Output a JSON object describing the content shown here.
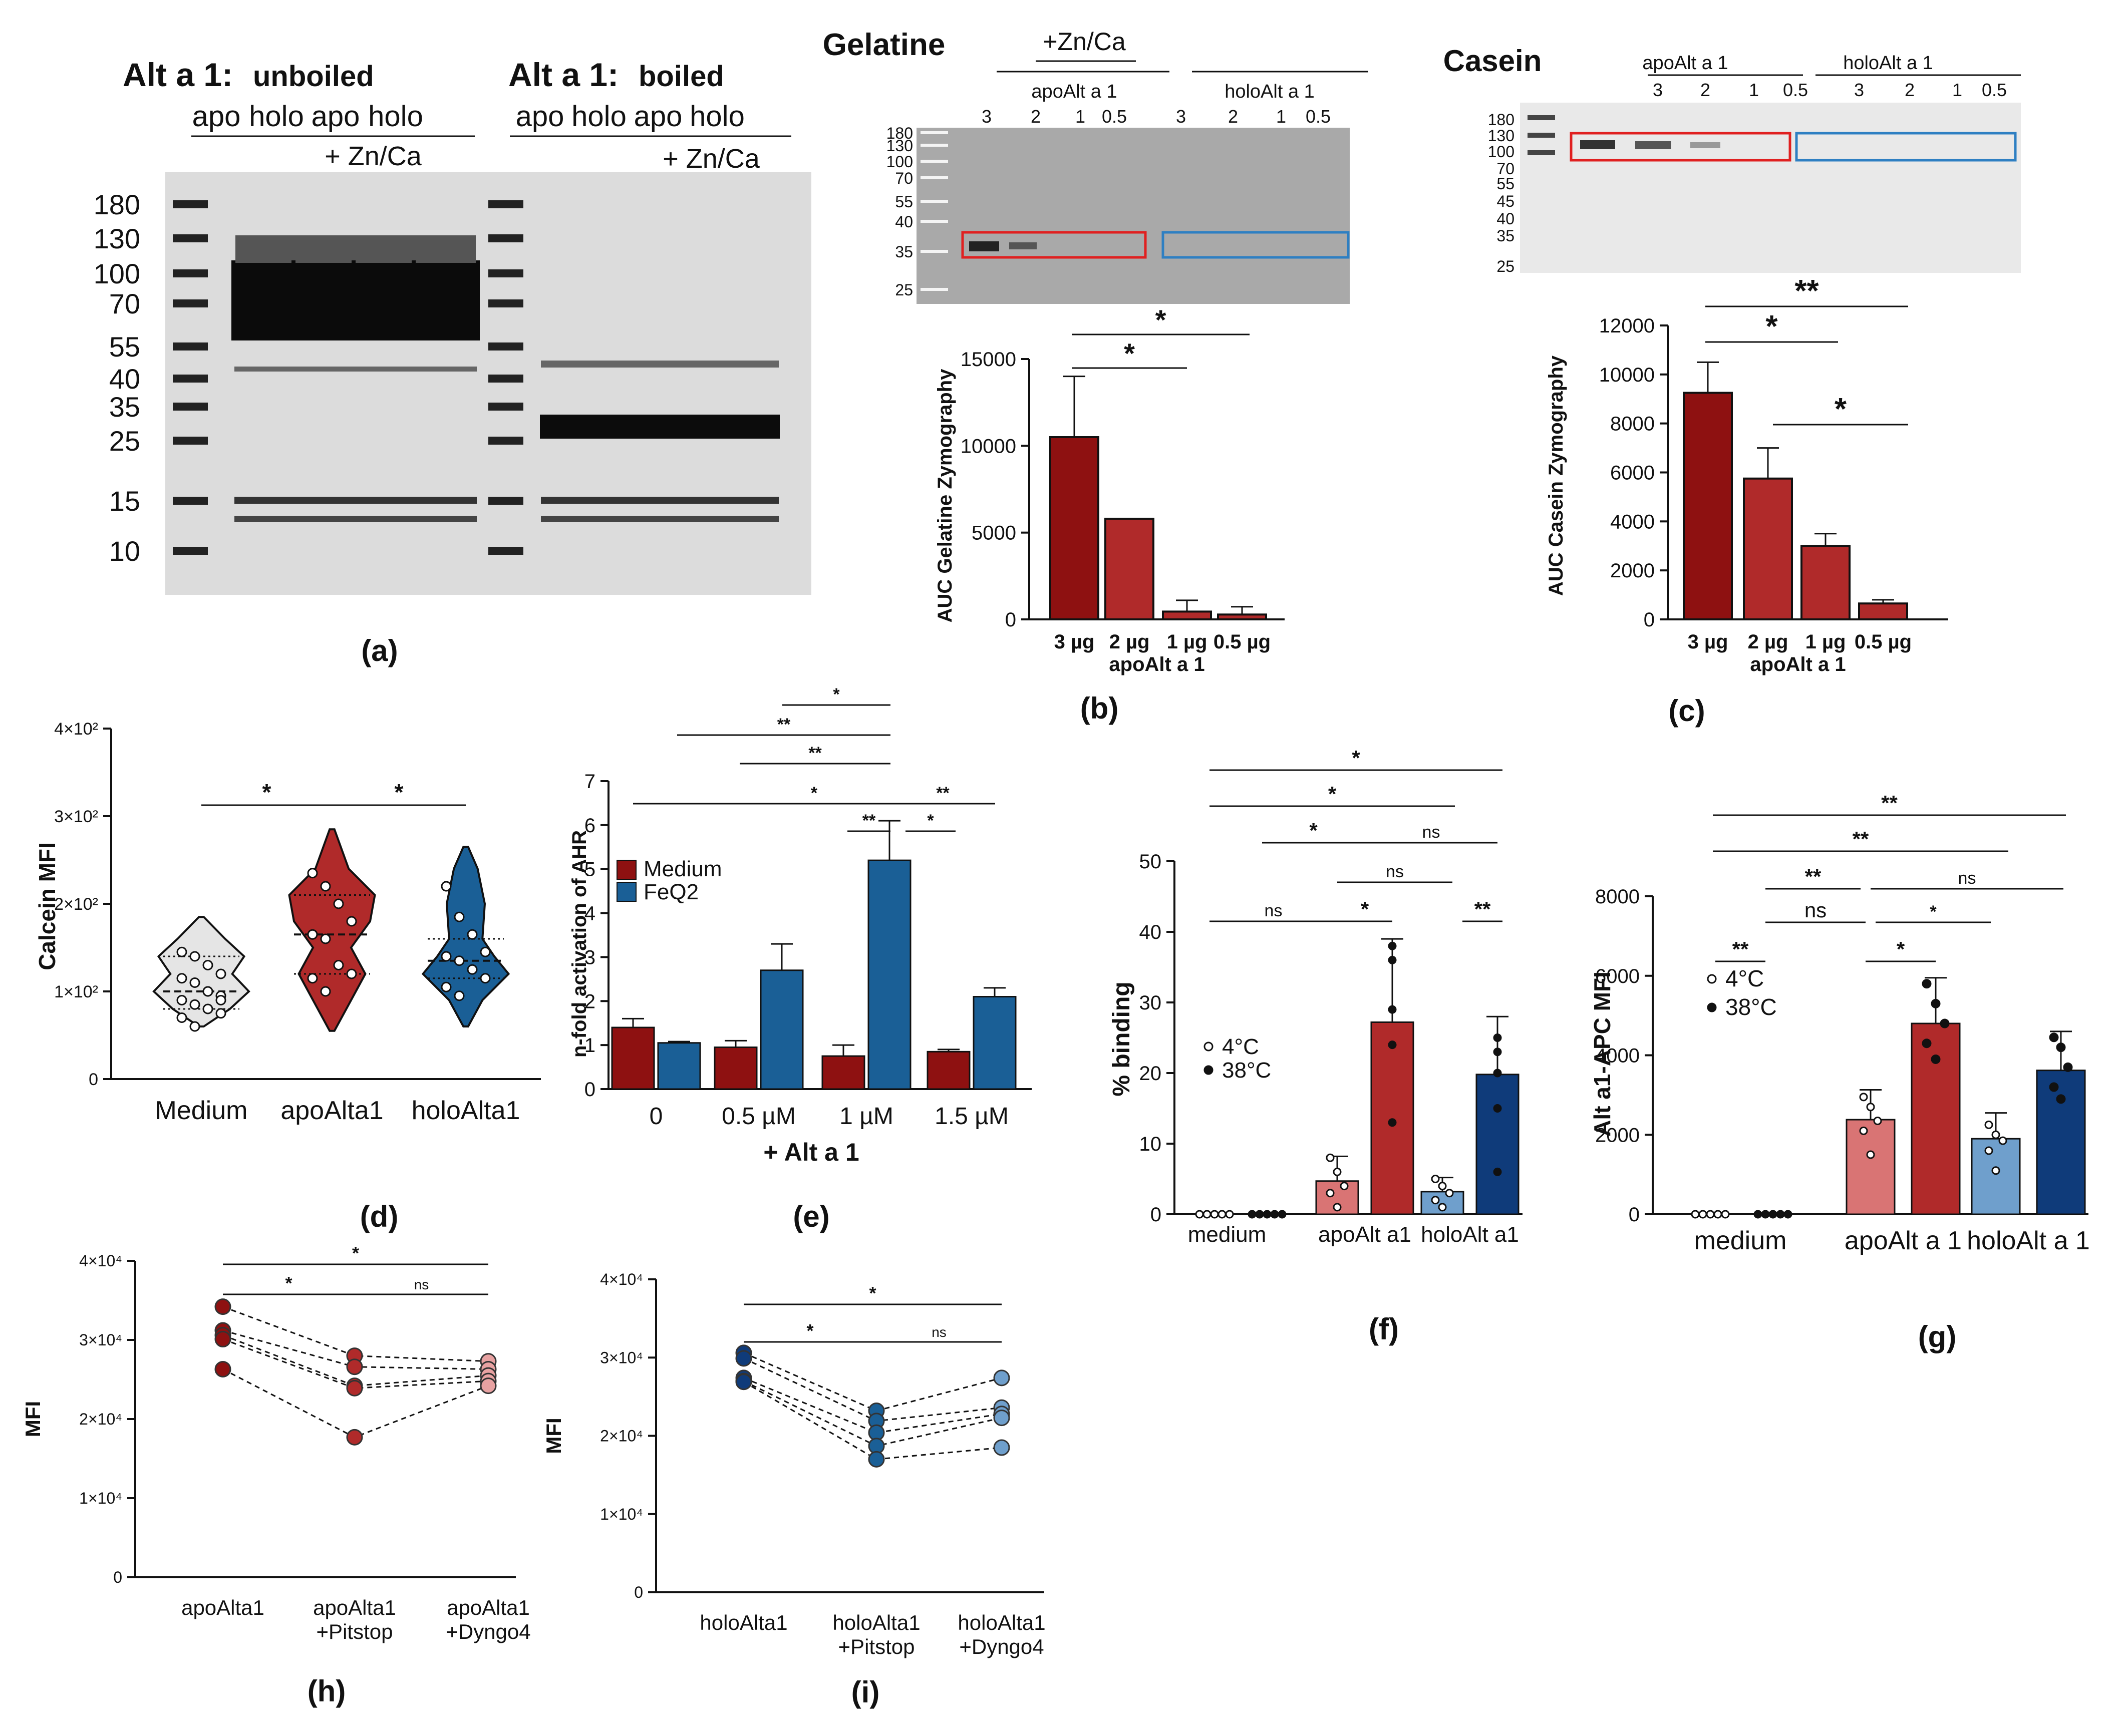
{
  "panels": {
    "a": {
      "label": "(a)",
      "left_title_prefix": "Alt a 1:",
      "left_title_suffix": "unboiled",
      "right_title_prefix": "Alt a 1:",
      "right_title_suffix": "boiled",
      "lanes_left": [
        "apo",
        "holo",
        "apo",
        "holo"
      ],
      "lanes_right": [
        "apo",
        "holo",
        "apo",
        "holo"
      ],
      "zn_label": "+ Zn/Ca",
      "markers": [
        "180",
        "130",
        "100",
        "70",
        "55",
        "40",
        "35",
        "25",
        "15",
        "10"
      ]
    },
    "b": {
      "label": "(b)",
      "gel_title": "Gelatine",
      "zn_label": "+Zn/Ca",
      "group_labels": [
        "apoAlt a 1",
        "holoAlt a 1"
      ],
      "lane_labels": [
        "3",
        "2",
        "1",
        "0.5",
        "3",
        "2",
        "1",
        "0.5"
      ],
      "markers": [
        "180",
        "130",
        "100",
        "70",
        "55",
        "40",
        "35",
        "25"
      ]
    },
    "c": {
      "label": "(c)",
      "gel_title": "Casein",
      "group_labels": [
        "apoAlt a 1",
        "holoAlt a 1"
      ],
      "lane_labels": [
        "3",
        "2",
        "1",
        "0.5",
        "3",
        "2",
        "1",
        "0.5"
      ],
      "markers": [
        "180",
        "130",
        "100",
        "70",
        "55",
        "45",
        "40",
        "35",
        "25"
      ]
    },
    "d": {
      "label": "(d)"
    },
    "e": {
      "label": "(e)"
    },
    "f": {
      "label": "(f)"
    },
    "g": {
      "label": "(g)"
    },
    "h": {
      "label": "(h)"
    },
    "i": {
      "label": "(i)"
    }
  },
  "colors": {
    "dark_red": "#8e1111",
    "red": "#b02a2a",
    "light_red": "#d97474",
    "blue": "#1a5f96",
    "light_blue": "#6f9fcc",
    "navy": "#0f3b7a",
    "pale": "#e5e5e5",
    "yellow": "#f5b400",
    "box_red": "#e02020",
    "box_blue": "#2e7fc2"
  },
  "chart_data": [
    {
      "id": "b",
      "type": "bar",
      "ylabel": "AUC Gelatine Zymography",
      "xlabel": "apoAlt a 1",
      "categories": [
        "3 µg",
        "2 µg",
        "1 µg",
        "0.5 µg"
      ],
      "values": [
        10500,
        5800,
        450,
        280
      ],
      "errors": [
        3500,
        0,
        650,
        450
      ],
      "ylim": [
        0,
        15000
      ],
      "yticks": [
        "0",
        "5000",
        "10000",
        "15000"
      ],
      "ytick_values": [
        0,
        5000,
        10000,
        15000
      ],
      "significance": [
        "*",
        "*"
      ]
    },
    {
      "id": "c",
      "type": "bar",
      "ylabel": "AUC Casein Zymography",
      "xlabel": "apoAlt a 1",
      "categories": [
        "3 µg",
        "2 µg",
        "1 µg",
        "0.5 µg"
      ],
      "values": [
        9250,
        5750,
        3000,
        650
      ],
      "errors": [
        1250,
        1250,
        500,
        150
      ],
      "ylim": [
        0,
        12000
      ],
      "yticks": [
        "0",
        "2000",
        "4000",
        "6000",
        "8000",
        "10000",
        "12000"
      ],
      "ytick_values": [
        0,
        2000,
        4000,
        6000,
        8000,
        10000,
        12000
      ],
      "significance": [
        "**",
        "*",
        "*"
      ]
    },
    {
      "id": "d",
      "type": "violin",
      "ylabel": "Calcein MFI",
      "categories": [
        "Medium",
        "apoAlta1",
        "holoAlta1"
      ],
      "yticks": [
        "0",
        "1×10²",
        "2×10²",
        "3×10²",
        "4×10²"
      ],
      "ytick_values": [
        0,
        100,
        200,
        300,
        400
      ],
      "ylim": [
        0,
        400
      ],
      "points": [
        [
          145,
          140,
          130,
          120,
          115,
          110,
          100,
          95,
          90,
          85,
          80,
          75,
          70,
          60,
          100,
          90
        ],
        [
          235,
          220,
          200,
          180,
          165,
          160,
          130,
          120,
          115,
          100
        ],
        [
          220,
          185,
          165,
          145,
          140,
          135,
          125,
          115,
          105,
          95
        ]
      ],
      "medians": [
        100,
        165,
        135
      ],
      "quartiles": [
        [
          80,
          140
        ],
        [
          120,
          210
        ],
        [
          115,
          160
        ]
      ],
      "significance": [
        "*",
        "*"
      ]
    },
    {
      "id": "e",
      "type": "bar",
      "ylabel": "n-fold activation of AHR",
      "xlabel": "+ Alt a 1",
      "categories": [
        "0",
        "0.5 µM",
        "1 µM",
        "1.5 µM"
      ],
      "series": [
        {
          "name": "Medium",
          "values": [
            1.4,
            0.95,
            0.75,
            0.85
          ],
          "errors": [
            0.2,
            0.15,
            0.25,
            0.05
          ]
        },
        {
          "name": "FeQ2",
          "values": [
            1.05,
            2.7,
            5.2,
            2.1
          ],
          "errors": [
            0.03,
            0.6,
            0.9,
            0.2
          ]
        }
      ],
      "ylim": [
        0,
        7
      ],
      "yticks": [
        "0",
        "1",
        "2",
        "3",
        "4",
        "5",
        "6",
        "7"
      ],
      "ytick_values": [
        0,
        1,
        2,
        3,
        4,
        5,
        6,
        7
      ],
      "significance": [
        "*",
        "**",
        "**",
        "*",
        "**",
        "**",
        "*"
      ]
    },
    {
      "id": "f",
      "type": "bar",
      "ylabel": "% binding",
      "categories": [
        "medium",
        "apoAlt a1",
        "holoAlt a1"
      ],
      "series": [
        {
          "name": "4°C",
          "values": [
            0,
            4.7,
            3.2
          ],
          "errors": [
            0,
            3.5,
            2.0
          ],
          "points": [
            [
              0,
              0,
              0,
              0,
              0
            ],
            [
              8,
              6,
              4,
              3,
              1
            ]
          ],
          "points_holo": [
            5,
            4,
            3,
            2,
            1
          ]
        },
        {
          "name": "38°C",
          "values": [
            0,
            27.2,
            19.8
          ],
          "errors": [
            0,
            11.8,
            8.2
          ],
          "points": [
            [
              0,
              0,
              0,
              0,
              0
            ],
            [
              38,
              36,
              29,
              24,
              13
            ]
          ],
          "points_holo": [
            25,
            23,
            20,
            15,
            6
          ]
        }
      ],
      "legend": [
        "4°C",
        "38°C"
      ],
      "ylim": [
        0,
        50
      ],
      "yticks": [
        "0",
        "10",
        "20",
        "30",
        "40",
        "50"
      ],
      "ytick_values": [
        0,
        10,
        20,
        30,
        40,
        50
      ],
      "significance": [
        "*",
        "*",
        "*",
        "ns",
        "ns",
        "ns",
        "*",
        "**"
      ]
    },
    {
      "id": "g",
      "type": "bar",
      "ylabel": "Alt a1-APC MFI",
      "categories": [
        "medium",
        "apoAlt a 1",
        "holoAlt a 1"
      ],
      "series": [
        {
          "name": "4°C",
          "values": [
            0,
            2380,
            1900
          ],
          "errors": [
            0,
            750,
            650
          ]
        },
        {
          "name": "38°C",
          "values": [
            30,
            4800,
            3620
          ],
          "errors": [
            0,
            1150,
            980
          ]
        }
      ],
      "legend": [
        "4°C",
        "38°C"
      ],
      "ylim": [
        0,
        8000
      ],
      "yticks": [
        "0",
        "2000",
        "4000",
        "6000",
        "8000"
      ],
      "ytick_values": [
        0,
        2000,
        4000,
        6000,
        8000
      ],
      "significance": [
        "**",
        "**",
        "**",
        "ns",
        "ns",
        "*",
        "**",
        "*"
      ]
    },
    {
      "id": "h",
      "type": "paired_scatter",
      "ylabel": "MFI",
      "categories": [
        "apoAlta1",
        "apoAlta1\n+Pitstop",
        "apoAlta1\n+Dyngo4"
      ],
      "category_lines": [
        [
          "apoAlta1"
        ],
        [
          "apoAlta1",
          "+Pitstop"
        ],
        [
          "apoAlta1",
          "+Dyngo4"
        ]
      ],
      "pairs": [
        [
          34200,
          28000,
          27300
        ],
        [
          31200,
          26600,
          26300
        ],
        [
          30600,
          24200,
          25500
        ],
        [
          30100,
          23900,
          24800
        ],
        [
          26300,
          17700,
          24200
        ]
      ],
      "ylim": [
        0,
        40000
      ],
      "yticks": [
        "0",
        "1×10⁴",
        "2×10⁴",
        "3×10⁴",
        "4×10⁴"
      ],
      "ytick_values": [
        0,
        10000,
        20000,
        30000,
        40000
      ],
      "significance": [
        "*",
        "*",
        "ns"
      ]
    },
    {
      "id": "i",
      "type": "paired_scatter",
      "ylabel": "MFI",
      "categories": [
        "holoAlta1",
        "holoAlta1\n+Pitstop",
        "holoAlta1\n+Dyngo4"
      ],
      "category_lines": [
        [
          "holoAlta1"
        ],
        [
          "holoAlta1",
          "+Pitstop"
        ],
        [
          "holoAlta1",
          "+Dyngo4"
        ]
      ],
      "pairs": [
        [
          30600,
          23200,
          27400
        ],
        [
          29900,
          21900,
          23600
        ],
        [
          27400,
          20400,
          22800
        ],
        [
          27000,
          18700,
          22300
        ],
        [
          26900,
          17000,
          18500
        ]
      ],
      "ylim": [
        0,
        40000
      ],
      "yticks": [
        "0",
        "1×10⁴",
        "2×10⁴",
        "3×10⁴",
        "4×10⁴"
      ],
      "ytick_values": [
        0,
        10000,
        20000,
        30000,
        40000
      ],
      "significance": [
        "*",
        "*",
        "ns"
      ]
    }
  ]
}
